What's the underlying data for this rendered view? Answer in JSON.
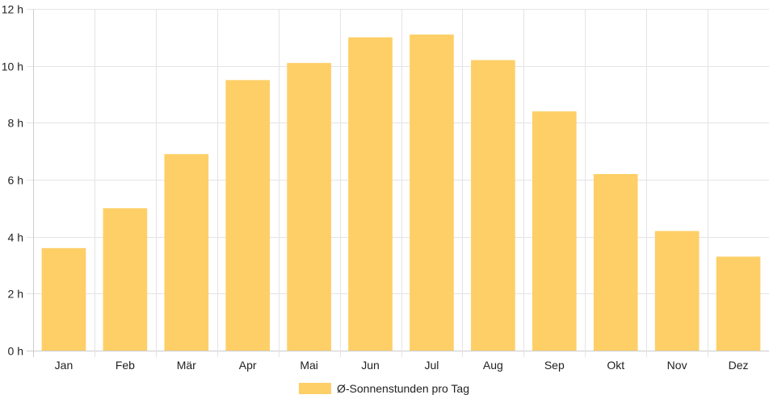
{
  "chart_data": {
    "type": "bar",
    "categories": [
      "Jan",
      "Feb",
      "Mär",
      "Apr",
      "Mai",
      "Jun",
      "Jul",
      "Aug",
      "Sep",
      "Okt",
      "Nov",
      "Dez"
    ],
    "series": [
      {
        "name": "Ø-Sonnenstunden pro Tag",
        "values": [
          3.6,
          5.0,
          6.9,
          9.5,
          10.1,
          11.0,
          11.1,
          10.2,
          8.4,
          6.2,
          4.2,
          3.3
        ],
        "color": "#fecf66"
      }
    ],
    "title": "",
    "xlabel": "",
    "ylabel": "",
    "ylim": [
      0,
      12
    ],
    "y_ticks": [
      0,
      2,
      4,
      6,
      8,
      10,
      12
    ],
    "y_tick_suffix": " h",
    "grid": true,
    "legend_position": "bottom"
  }
}
